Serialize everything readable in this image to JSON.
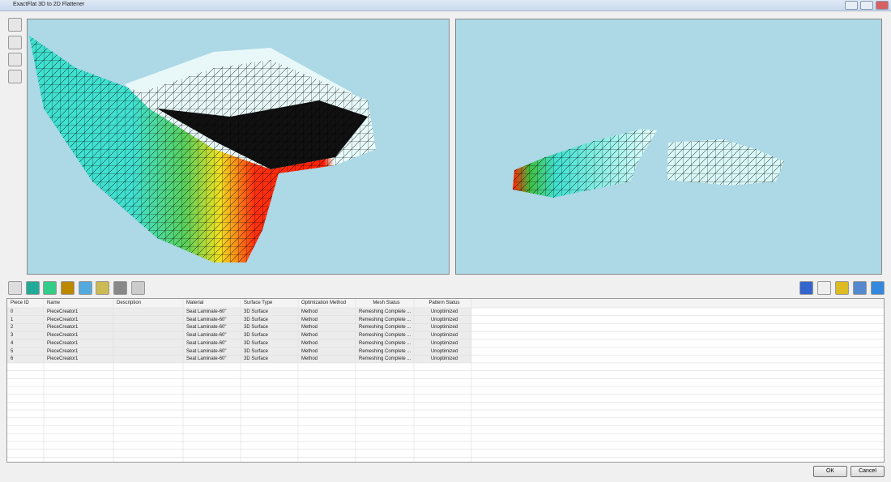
{
  "window": {
    "title": "ExactFlat 3D to 2D Flattener"
  },
  "table": {
    "columns": [
      "Piece ID",
      "Name",
      "Description",
      "Material",
      "Surface Type",
      "Optimization Method",
      "Mesh Status",
      "Pattern Status"
    ],
    "rows": [
      {
        "piece_id": "0",
        "name": "PieceCreator1",
        "material": "Seat Laminate-60\"",
        "surface_type": "3D Surface",
        "optimization_method": "Method",
        "mesh_status": "Remeshing Complete ...",
        "pattern_status": "Unoptimized"
      },
      {
        "piece_id": "1",
        "name": "PieceCreator1",
        "material": "Seat Laminate-60\"",
        "surface_type": "3D Surface",
        "optimization_method": "Method",
        "mesh_status": "Remeshing Complete ...",
        "pattern_status": "Unoptimized"
      },
      {
        "piece_id": "2",
        "name": "PieceCreator1",
        "material": "Seat Laminate-60\"",
        "surface_type": "3D Surface",
        "optimization_method": "Method",
        "mesh_status": "Remeshing Complete ...",
        "pattern_status": "Unoptimized"
      },
      {
        "piece_id": "3",
        "name": "PieceCreator1",
        "material": "Seat Laminate-60\"",
        "surface_type": "3D Surface",
        "optimization_method": "Method",
        "mesh_status": "Remeshing Complete ...",
        "pattern_status": "Unoptimized"
      },
      {
        "piece_id": "4",
        "name": "PieceCreator1",
        "material": "Seat Laminate-60\"",
        "surface_type": "3D Surface",
        "optimization_method": "Method",
        "mesh_status": "Remeshing Complete ...",
        "pattern_status": "Unoptimized"
      },
      {
        "piece_id": "5",
        "name": "PieceCreator1",
        "material": "Seat Laminate-60\"",
        "surface_type": "3D Surface",
        "optimization_method": "Method",
        "mesh_status": "Remeshing Complete ...",
        "pattern_status": "Unoptimized"
      },
      {
        "piece_id": "6",
        "name": "PieceCreator1",
        "material": "Seat Laminate-60\"",
        "surface_type": "3D Surface",
        "optimization_method": "Method",
        "mesh_status": "Remeshing Complete ...",
        "pattern_status": "Unoptimized"
      }
    ]
  },
  "buttons": {
    "ok": "OK",
    "cancel": "Cancel"
  }
}
